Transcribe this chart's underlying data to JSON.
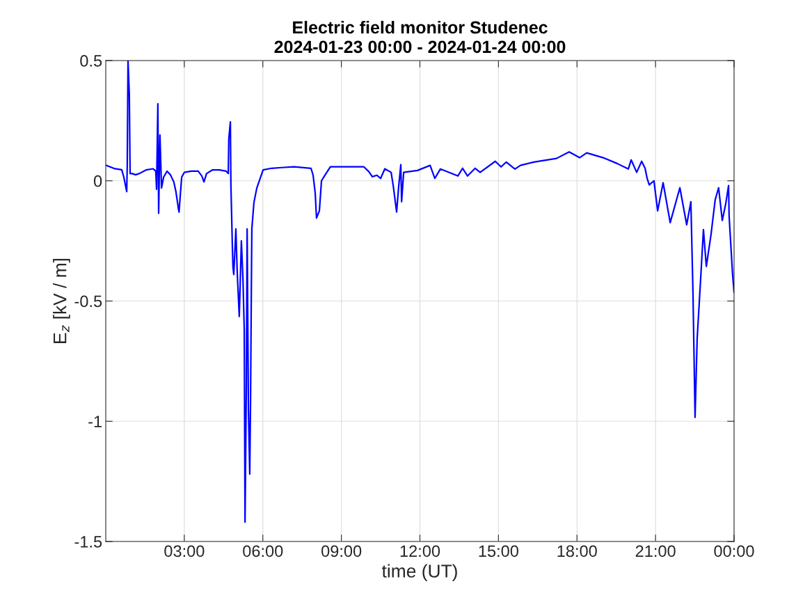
{
  "chart_data": {
    "type": "line",
    "title": "Electric field monitor Studenec\n2024-01-23 00:00 - 2024-01-24 00:00",
    "xlabel": "time (UT)",
    "ylabel": "E$_{z}$ [kV / m]",
    "xlim": [
      0,
      24
    ],
    "ylim": [
      -1.5,
      0.5
    ],
    "xticks": [
      {
        "value": 3,
        "label": "03:00"
      },
      {
        "value": 6,
        "label": "06:00"
      },
      {
        "value": 9,
        "label": "09:00"
      },
      {
        "value": 12,
        "label": "12:00"
      },
      {
        "value": 15,
        "label": "15:00"
      },
      {
        "value": 18,
        "label": "18:00"
      },
      {
        "value": 21,
        "label": "21:00"
      },
      {
        "value": 24,
        "label": "00:00"
      }
    ],
    "yticks": [
      -1.5,
      -1,
      -0.5,
      0,
      0.5
    ],
    "grid": true,
    "marker": "none",
    "line_style": "solid",
    "series": [
      {
        "color": "#0000ff",
        "x": [
          0.0,
          0.35,
          0.61,
          0.69,
          0.8,
          0.82,
          0.85,
          0.9,
          0.93,
          1.01,
          1.14,
          1.28,
          1.54,
          1.81,
          1.91,
          1.94,
          1.99,
          2.02,
          2.07,
          2.13,
          2.21,
          2.34,
          2.47,
          2.6,
          2.68,
          2.78,
          2.8,
          2.84,
          2.9,
          3.0,
          3.27,
          3.53,
          3.67,
          3.75,
          3.85,
          4.07,
          4.33,
          4.6,
          4.68,
          4.7,
          4.76,
          4.78,
          4.84,
          4.86,
          4.89,
          4.97,
          5.02,
          5.1,
          5.18,
          5.24,
          5.29,
          5.32,
          5.37,
          5.4,
          5.45,
          5.5,
          5.53,
          5.56,
          5.58,
          5.66,
          5.77,
          5.93,
          6.01,
          6.33,
          6.72,
          7.2,
          7.84,
          7.92,
          8.0,
          8.05,
          8.16,
          8.24,
          8.37,
          8.58,
          9.25,
          9.86,
          10.05,
          10.18,
          10.36,
          10.5,
          10.66,
          10.9,
          10.98,
          11.11,
          11.19,
          11.27,
          11.3,
          11.38,
          11.91,
          12.39,
          12.57,
          12.78,
          13.45,
          13.63,
          13.82,
          14.11,
          14.3,
          14.88,
          15.1,
          15.3,
          15.63,
          15.84,
          16.35,
          17.22,
          17.7,
          18.1,
          18.37,
          19.0,
          19.53,
          19.96,
          20.07,
          20.28,
          20.47,
          20.6,
          20.68,
          20.76,
          20.94,
          21.08,
          21.29,
          21.56,
          21.93,
          22.19,
          22.35,
          22.43,
          22.51,
          22.59,
          22.72,
          22.83,
          22.94,
          23.12,
          23.28,
          23.41,
          23.55,
          23.68,
          23.79,
          23.81,
          23.94,
          24.0
        ],
        "values": [
          0.065,
          0.05,
          0.046,
          0.015,
          -0.045,
          0.06,
          0.5,
          0.36,
          0.03,
          0.03,
          0.025,
          0.03,
          0.045,
          0.05,
          0.04,
          -0.035,
          0.32,
          -0.135,
          0.19,
          -0.03,
          0.015,
          0.04,
          0.025,
          -0.005,
          -0.045,
          -0.12,
          -0.13,
          -0.07,
          0.015,
          0.035,
          0.04,
          0.04,
          0.02,
          -0.005,
          0.03,
          0.045,
          0.045,
          0.04,
          0.03,
          0.175,
          0.245,
          -0.015,
          -0.29,
          -0.36,
          -0.39,
          -0.2,
          -0.376,
          -0.564,
          -0.25,
          -0.405,
          -0.62,
          -1.42,
          -0.85,
          -0.2,
          -0.955,
          -1.22,
          -0.925,
          -0.46,
          -0.2,
          -0.09,
          -0.03,
          0.02,
          0.045,
          0.052,
          0.055,
          0.058,
          0.052,
          0.023,
          -0.05,
          -0.155,
          -0.125,
          0.0,
          0.023,
          0.058,
          0.058,
          0.058,
          0.038,
          0.017,
          0.023,
          0.01,
          0.05,
          0.035,
          -0.02,
          -0.13,
          -0.023,
          0.067,
          -0.087,
          0.035,
          0.043,
          0.064,
          0.01,
          0.049,
          0.02,
          0.052,
          0.02,
          0.052,
          0.035,
          0.081,
          0.058,
          0.078,
          0.049,
          0.064,
          0.078,
          0.093,
          0.12,
          0.096,
          0.116,
          0.096,
          0.072,
          0.049,
          0.087,
          0.035,
          0.081,
          0.052,
          0.01,
          -0.017,
          0.0,
          -0.125,
          -0.008,
          -0.174,
          -0.029,
          -0.183,
          -0.087,
          -0.463,
          -0.984,
          -0.657,
          -0.414,
          -0.203,
          -0.356,
          -0.223,
          -0.078,
          -0.029,
          -0.165,
          -0.096,
          -0.02,
          -0.145,
          -0.385,
          -0.463
        ]
      }
    ]
  }
}
